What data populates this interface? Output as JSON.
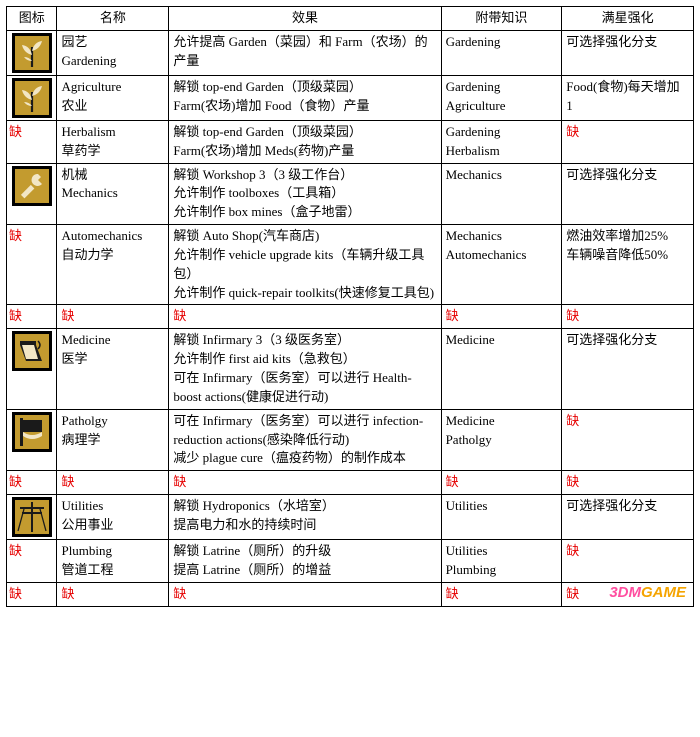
{
  "headers": {
    "icon": "图标",
    "name": "名称",
    "effect": "效果",
    "knowledge": "附带知识",
    "maxstar": "满星强化"
  },
  "missing_label": "缺",
  "watermark": "3DMGAME",
  "icon_style": {
    "bg": "#c39b2f",
    "border": "#000000",
    "fg_light": "#f2e6c5",
    "fg_dark": "#1a1a1a"
  },
  "rows": [
    {
      "icon": "plant",
      "name": "园艺\nGardening",
      "effect": "允许提高 Garden（菜园）和 Farm（农场）的产量",
      "knowledge": "Gardening",
      "maxstar": "可选择强化分支"
    },
    {
      "icon": "plant",
      "name": "Agriculture\n农业",
      "effect": "解锁 top-end Garden（顶级菜园）\nFarm(农场)增加 Food（食物）产量",
      "knowledge": "Gardening\nAgriculture",
      "maxstar": "Food(食物)每天增加 1"
    },
    {
      "icon": null,
      "name": "Herbalism\n草药学",
      "effect": "解锁 top-end Garden（顶级菜园）\nFarm(农场)增加 Meds(药物)产量",
      "knowledge": "Gardening\nHerbalism",
      "maxstar": null
    },
    {
      "icon": "wrench",
      "name": "机械\nMechanics",
      "effect": "解锁 Workshop 3（3 级工作台）\n允许制作 toolboxes（工具箱）\n允许制作 box mines（盒子地雷）",
      "knowledge": "Mechanics",
      "maxstar": "可选择强化分支"
    },
    {
      "icon": null,
      "name": "Automechanics\n自动力学",
      "effect": "解锁 Auto Shop(汽车商店)\n允许制作 vehicle upgrade kits（车辆升级工具包）\n允许制作 quick-repair toolkits(快速修复工具包)",
      "knowledge": "Mechanics\nAutomechanics",
      "maxstar": "燃油效率增加25%\n车辆噪音降低50%"
    },
    {
      "all_missing": true
    },
    {
      "icon": "flask",
      "name": "Medicine\n医学",
      "effect": "解锁 Infirmary 3（3 级医务室）\n允许制作 first aid kits（急救包）\n可在 Infirmary（医务室）可以进行 Health-boost actions(健康促进行动)",
      "knowledge": "Medicine",
      "maxstar": "可选择强化分支"
    },
    {
      "icon": "flag",
      "name": "Patholgy\n病理学",
      "effect": "可在 Infirmary（医务室）可以进行 infection-reduction actions(感染降低行动)\n减少 plague cure（瘟疫药物）的制作成本",
      "knowledge": "Medicine\nPatholgy",
      "maxstar": null
    },
    {
      "all_missing": true
    },
    {
      "icon": "pole",
      "name": "Utilities\n公用事业",
      "effect": "解锁 Hydroponics（水培室）\n提高电力和水的持续时间",
      "knowledge": "Utilities",
      "maxstar": "可选择强化分支"
    },
    {
      "icon": null,
      "name": "Plumbing\n管道工程",
      "effect": "解锁 Latrine（厕所）的升级\n提高 Latrine（厕所）的增益",
      "knowledge": "Utilities\nPlumbing",
      "maxstar": null
    },
    {
      "all_missing": true
    }
  ]
}
